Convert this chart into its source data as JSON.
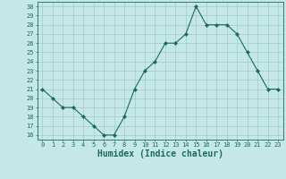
{
  "x": [
    0,
    1,
    2,
    3,
    4,
    5,
    6,
    7,
    8,
    9,
    10,
    11,
    12,
    13,
    14,
    15,
    16,
    17,
    18,
    19,
    20,
    21,
    22,
    23
  ],
  "y": [
    21,
    20,
    19,
    19,
    18,
    17,
    16,
    16,
    18,
    21,
    23,
    24,
    26,
    26,
    27,
    30,
    28,
    28,
    28,
    27,
    25,
    23,
    21,
    21
  ],
  "line_color": "#1a6b5a",
  "marker": "D",
  "marker_size": 2.2,
  "bg_color": "#c5e8e6",
  "grid_color": "#a0ccc8",
  "xlabel": "Humidex (Indice chaleur)",
  "xlabel_fontsize": 7,
  "ylabel_ticks": [
    16,
    17,
    18,
    19,
    20,
    21,
    22,
    23,
    24,
    25,
    26,
    27,
    28,
    29,
    30
  ],
  "ylim": [
    15.5,
    30.5
  ],
  "xlim": [
    -0.5,
    23.5
  ],
  "tick_fontsize": 5.0
}
